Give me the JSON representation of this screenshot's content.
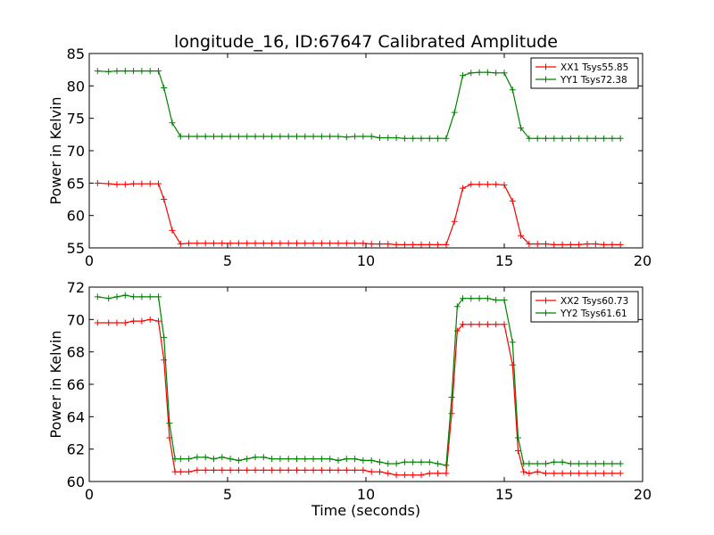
{
  "chart_data": [
    {
      "type": "line",
      "title": "longitude_16, ID:67647 Calibrated Amplitude",
      "xlabel": "",
      "ylabel": "Power in Kelvin",
      "xlim": [
        0,
        20
      ],
      "ylim": [
        55,
        85
      ],
      "xticks": [
        0,
        5,
        10,
        15,
        20
      ],
      "yticks": [
        55,
        60,
        65,
        70,
        75,
        80,
        85
      ],
      "grid": false,
      "legend_position": "top-right",
      "x": [
        0.3,
        0.7,
        1.0,
        1.3,
        1.6,
        1.9,
        2.2,
        2.5,
        2.7,
        3.0,
        3.3,
        3.6,
        3.9,
        4.2,
        4.5,
        4.8,
        5.1,
        5.4,
        5.7,
        6.0,
        6.3,
        6.6,
        6.9,
        7.2,
        7.5,
        7.8,
        8.1,
        8.4,
        8.7,
        9.0,
        9.3,
        9.6,
        9.9,
        10.2,
        10.5,
        10.8,
        11.1,
        11.4,
        11.7,
        12.0,
        12.3,
        12.6,
        12.9,
        13.2,
        13.5,
        13.8,
        14.1,
        14.4,
        14.7,
        15.0,
        15.3,
        15.6,
        15.9,
        16.2,
        16.5,
        16.8,
        17.1,
        17.4,
        17.7,
        18.0,
        18.3,
        18.6,
        18.9,
        19.2
      ],
      "series": [
        {
          "name": "XX1 Tsys55.85",
          "color": "#ff0000",
          "values": [
            65.0,
            64.9,
            64.8,
            64.8,
            64.9,
            64.9,
            64.9,
            64.9,
            62.5,
            57.7,
            55.6,
            55.7,
            55.7,
            55.7,
            55.7,
            55.7,
            55.7,
            55.7,
            55.7,
            55.7,
            55.7,
            55.7,
            55.7,
            55.7,
            55.7,
            55.7,
            55.7,
            55.7,
            55.7,
            55.7,
            55.7,
            55.7,
            55.7,
            55.6,
            55.6,
            55.6,
            55.5,
            55.5,
            55.5,
            55.5,
            55.5,
            55.5,
            55.5,
            59.1,
            64.2,
            64.8,
            64.8,
            64.8,
            64.8,
            64.7,
            62.2,
            56.9,
            55.6,
            55.6,
            55.6,
            55.5,
            55.5,
            55.5,
            55.5,
            55.6,
            55.6,
            55.5,
            55.5,
            55.5
          ]
        },
        {
          "name": "YY1 Tsys72.38",
          "color": "#008000",
          "values": [
            82.3,
            82.2,
            82.3,
            82.3,
            82.3,
            82.3,
            82.3,
            82.3,
            79.7,
            74.3,
            72.2,
            72.2,
            72.2,
            72.2,
            72.2,
            72.2,
            72.2,
            72.2,
            72.2,
            72.2,
            72.2,
            72.2,
            72.2,
            72.2,
            72.2,
            72.2,
            72.2,
            72.2,
            72.2,
            72.2,
            72.1,
            72.2,
            72.2,
            72.2,
            72.0,
            72.0,
            72.0,
            71.9,
            71.9,
            71.9,
            71.9,
            71.9,
            71.9,
            75.9,
            81.6,
            82.0,
            82.1,
            82.1,
            82.0,
            82.0,
            79.4,
            73.5,
            71.9,
            71.9,
            71.9,
            71.9,
            71.9,
            71.9,
            71.9,
            71.9,
            71.9,
            71.9,
            71.9,
            71.9
          ]
        }
      ]
    },
    {
      "type": "line",
      "title": "",
      "xlabel": "Time (seconds)",
      "ylabel": "Power in Kelvin",
      "xlim": [
        0,
        20
      ],
      "ylim": [
        60,
        72
      ],
      "xticks": [
        0,
        5,
        10,
        15,
        20
      ],
      "yticks": [
        60,
        62,
        64,
        66,
        68,
        70,
        72
      ],
      "grid": false,
      "legend_position": "top-right",
      "x": [
        0.3,
        0.7,
        1.0,
        1.3,
        1.6,
        1.9,
        2.2,
        2.5,
        2.7,
        2.9,
        3.1,
        3.3,
        3.6,
        3.9,
        4.2,
        4.5,
        4.8,
        5.1,
        5.4,
        5.7,
        6.0,
        6.3,
        6.6,
        6.9,
        7.2,
        7.5,
        7.8,
        8.1,
        8.4,
        8.7,
        9.0,
        9.3,
        9.6,
        9.9,
        10.2,
        10.5,
        10.8,
        11.1,
        11.4,
        11.7,
        12.0,
        12.3,
        12.6,
        12.9,
        13.1,
        13.3,
        13.5,
        13.8,
        14.1,
        14.4,
        14.7,
        15.0,
        15.3,
        15.5,
        15.7,
        15.9,
        16.2,
        16.5,
        16.8,
        17.1,
        17.4,
        17.7,
        18.0,
        18.3,
        18.6,
        18.9,
        19.2
      ],
      "series": [
        {
          "name": "XX2 Tsys60.73",
          "color": "#ff0000",
          "values": [
            69.8,
            69.8,
            69.8,
            69.8,
            69.9,
            69.9,
            70.0,
            69.9,
            67.5,
            62.7,
            60.6,
            60.6,
            60.6,
            60.7,
            60.7,
            60.7,
            60.7,
            60.7,
            60.7,
            60.7,
            60.7,
            60.7,
            60.7,
            60.7,
            60.7,
            60.7,
            60.7,
            60.7,
            60.7,
            60.7,
            60.7,
            60.7,
            60.7,
            60.7,
            60.6,
            60.6,
            60.5,
            60.4,
            60.4,
            60.4,
            60.4,
            60.5,
            60.5,
            60.5,
            64.2,
            69.3,
            69.7,
            69.7,
            69.7,
            69.7,
            69.7,
            69.7,
            67.2,
            61.9,
            60.6,
            60.5,
            60.6,
            60.5,
            60.5,
            60.5,
            60.5,
            60.5,
            60.5,
            60.5,
            60.5,
            60.5,
            60.5
          ]
        },
        {
          "name": "YY2 Tsys61.61",
          "color": "#008000",
          "values": [
            71.4,
            71.3,
            71.4,
            71.5,
            71.4,
            71.4,
            71.4,
            71.4,
            68.9,
            63.6,
            61.4,
            61.4,
            61.4,
            61.5,
            61.5,
            61.4,
            61.5,
            61.4,
            61.3,
            61.4,
            61.5,
            61.5,
            61.4,
            61.4,
            61.4,
            61.4,
            61.4,
            61.4,
            61.4,
            61.4,
            61.3,
            61.4,
            61.4,
            61.3,
            61.3,
            61.2,
            61.1,
            61.1,
            61.2,
            61.2,
            61.2,
            61.2,
            61.1,
            61.0,
            65.2,
            70.8,
            71.3,
            71.3,
            71.3,
            71.3,
            71.2,
            71.2,
            68.6,
            62.7,
            61.1,
            61.1,
            61.1,
            61.1,
            61.2,
            61.2,
            61.1,
            61.1,
            61.1,
            61.1,
            61.1,
            61.1,
            61.1
          ]
        }
      ]
    }
  ]
}
